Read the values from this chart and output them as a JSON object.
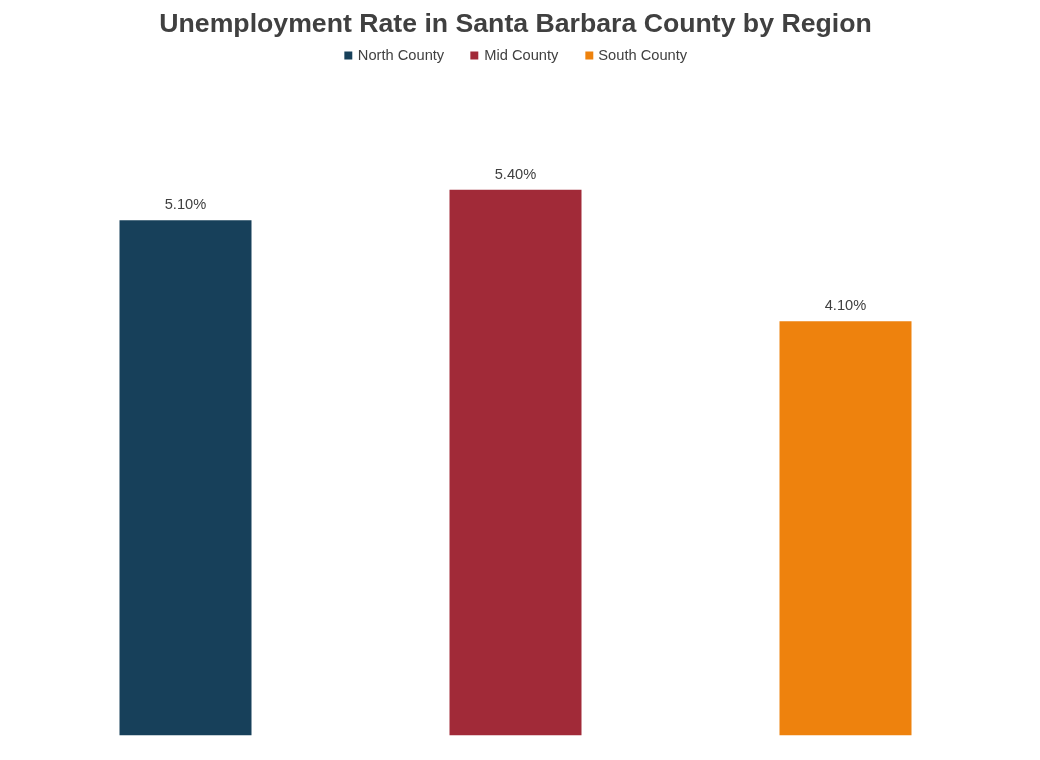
{
  "chart_data": {
    "type": "bar",
    "title": "Unemployment Rate in Santa Barbara County by Region",
    "categories": [
      null,
      null,
      null
    ],
    "stacked": true,
    "series": [
      {
        "name": "North County",
        "color": "#17405a",
        "values": [
          5.1,
          null,
          null
        ],
        "value_labels": [
          "5.10%",
          null,
          null
        ]
      },
      {
        "name": "Mid County",
        "color": "#a12a38",
        "values": [
          null,
          5.4,
          null
        ],
        "value_labels": [
          null,
          "5.40%",
          null
        ]
      },
      {
        "name": "South County",
        "color": "#ee820d",
        "values": [
          null,
          null,
          4.1
        ],
        "value_labels": [
          null,
          null,
          "4.10%"
        ]
      }
    ],
    "legend": "top",
    "grid": false,
    "tick_labels": false
  }
}
